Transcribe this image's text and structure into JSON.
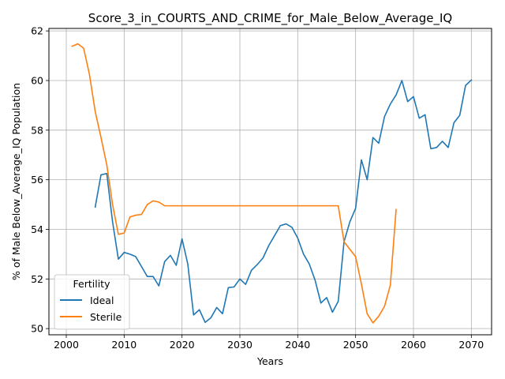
{
  "chart_data": {
    "type": "line",
    "title": "Score_3_in_COURTS_AND_CRIME_for_Male_Below_Average_IQ",
    "xlabel": "Years",
    "ylabel": "% of Male Below_Average_IQ Population",
    "xlim": [
      1997,
      2073.5
    ],
    "ylim": [
      49.75,
      62.1
    ],
    "xticks": [
      2000,
      2010,
      2020,
      2030,
      2040,
      2050,
      2060,
      2070
    ],
    "yticks": [
      50,
      52,
      54,
      56,
      58,
      60,
      62
    ],
    "grid": true,
    "legend": {
      "title": "Fertility",
      "placement": "lower-left"
    },
    "series": [
      {
        "name": "Ideal",
        "color": "#1f77b4",
        "x": [
          2005,
          2006,
          2007,
          2008,
          2009,
          2010,
          2011,
          2012,
          2013,
          2014,
          2015,
          2016,
          2017,
          2018,
          2019,
          2020,
          2021,
          2022,
          2023,
          2024,
          2025,
          2026,
          2027,
          2028,
          2029,
          2030,
          2031,
          2032,
          2033,
          2034,
          2035,
          2036,
          2037,
          2038,
          2039,
          2040,
          2041,
          2042,
          2043,
          2044,
          2045,
          2046,
          2047,
          2048,
          2049,
          2050,
          2051,
          2052,
          2053,
          2054,
          2055,
          2056,
          2057,
          2058,
          2059,
          2060,
          2061,
          2062,
          2063,
          2064,
          2065,
          2066,
          2067,
          2068,
          2069,
          2070
        ],
        "y": [
          54.9,
          56.2,
          56.25,
          54.3,
          52.8,
          53.07,
          53.0,
          52.9,
          52.5,
          52.1,
          52.1,
          51.72,
          52.7,
          52.95,
          52.55,
          53.62,
          52.6,
          50.55,
          50.76,
          50.25,
          50.44,
          50.85,
          50.6,
          51.65,
          51.68,
          52.0,
          51.78,
          52.35,
          52.58,
          52.85,
          53.35,
          53.75,
          54.15,
          54.22,
          54.08,
          53.65,
          53.0,
          52.6,
          51.95,
          51.03,
          51.25,
          50.66,
          51.1,
          53.5,
          54.3,
          54.85,
          56.8,
          56.0,
          57.7,
          57.47,
          58.55,
          59.05,
          59.42,
          60.0,
          59.15,
          59.35,
          58.48,
          58.62,
          57.25,
          57.3,
          57.55,
          57.3,
          58.3,
          58.6,
          59.8,
          60.02
        ]
      },
      {
        "name": "Sterile",
        "color": "#ff7f0e",
        "x": [
          2001,
          2002,
          2003,
          2004,
          2005,
          2006,
          2007,
          2008,
          2009,
          2010,
          2011,
          2012,
          2013,
          2014,
          2015,
          2016,
          2017,
          2018,
          2019,
          2020,
          2021,
          2022,
          2023,
          2024,
          2025,
          2026,
          2027,
          2028,
          2029,
          2030,
          2031,
          2032,
          2033,
          2034,
          2035,
          2036,
          2037,
          2038,
          2039,
          2040,
          2041,
          2042,
          2043,
          2044,
          2045,
          2046,
          2047,
          2048,
          2049,
          2050,
          2051,
          2052,
          2053,
          2054,
          2055,
          2056,
          2057
        ],
        "y": [
          61.38,
          61.48,
          61.3,
          60.25,
          58.75,
          57.7,
          56.6,
          55.0,
          53.8,
          53.85,
          54.5,
          54.57,
          54.6,
          55.0,
          55.15,
          55.1,
          54.95,
          54.95,
          54.95,
          54.95,
          54.95,
          54.95,
          54.95,
          54.95,
          54.95,
          54.95,
          54.95,
          54.95,
          54.95,
          54.95,
          54.95,
          54.95,
          54.95,
          54.95,
          54.95,
          54.95,
          54.95,
          54.95,
          54.95,
          54.95,
          54.95,
          54.95,
          54.95,
          54.95,
          54.95,
          54.95,
          54.95,
          53.5,
          53.2,
          52.9,
          51.8,
          50.6,
          50.23,
          50.5,
          50.9,
          51.75,
          54.8
        ]
      }
    ]
  }
}
